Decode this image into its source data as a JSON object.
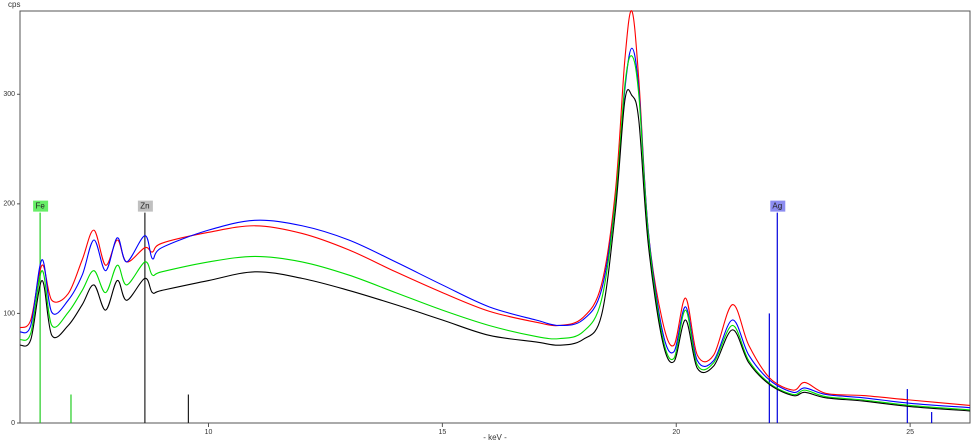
{
  "chart_data": {
    "type": "line",
    "y_label": "cps",
    "x_label": "- keV -",
    "xlim": [
      5.97,
      26.28
    ],
    "ylim": [
      0,
      376
    ],
    "xticks": [
      10,
      15,
      20,
      25
    ],
    "yticks": [
      0,
      100,
      200,
      300
    ],
    "x": [
      5.97,
      6.2,
      6.44,
      6.65,
      7.0,
      7.3,
      7.55,
      7.8,
      8.05,
      8.25,
      8.64,
      8.8,
      9.0,
      10,
      11,
      12,
      13,
      14,
      15,
      16,
      17,
      17.5,
      18,
      18.4,
      18.7,
      18.9,
      19.05,
      19.2,
      19.4,
      19.7,
      19.95,
      20.2,
      20.45,
      20.8,
      21.2,
      21.55,
      22.0,
      22.5,
      22.75,
      23.2,
      24,
      25,
      26.28
    ],
    "series": [
      {
        "color": "#ff0000",
        "values": [
          87,
          94,
          144,
          112,
          118,
          149,
          176,
          144,
          167,
          147,
          160,
          156,
          164,
          174,
          180,
          173,
          158,
          138,
          119,
          102,
          92,
          89,
          96,
          126,
          212,
          331,
          376,
          313,
          176,
          94,
          71,
          114,
          62,
          62,
          108,
          71,
          41,
          30,
          37,
          27,
          25,
          21,
          16
        ]
      },
      {
        "color": "#0000ff",
        "values": [
          83,
          89,
          149,
          101,
          112,
          135,
          167,
          139,
          169,
          147,
          171,
          150,
          160,
          176,
          185,
          180,
          167,
          147,
          126,
          106,
          94,
          89,
          94,
          121,
          203,
          304,
          342,
          304,
          176,
          85,
          65,
          106,
          57,
          57,
          94,
          62,
          39,
          28,
          32,
          26,
          23,
          18,
          14
        ]
      },
      {
        "color": "#00dd00",
        "values": [
          76,
          82,
          139,
          89,
          101,
          121,
          139,
          119,
          144,
          126,
          147,
          135,
          138,
          147,
          152,
          147,
          135,
          119,
          103,
          89,
          79,
          77,
          83,
          112,
          203,
          308,
          335,
          299,
          173,
          80,
          59,
          103,
          53,
          55,
          89,
          57,
          36,
          26,
          30,
          24,
          21,
          16,
          12
        ]
      },
      {
        "color": "#000000",
        "values": [
          71,
          76,
          130,
          80,
          89,
          108,
          126,
          103,
          130,
          112,
          132,
          119,
          121,
          130,
          138,
          132,
          121,
          108,
          94,
          80,
          74,
          71,
          76,
          98,
          194,
          294,
          299,
          276,
          164,
          76,
          56,
          94,
          50,
          52,
          85,
          55,
          35,
          25,
          28,
          23,
          20,
          15,
          11
        ]
      }
    ],
    "markers": [
      {
        "label": "Fe",
        "color": "#22cc22",
        "box": "#66ee66",
        "lines": [
          {
            "x": 6.4,
            "h": 192
          },
          {
            "x": 7.06,
            "h": 26
          }
        ]
      },
      {
        "label": "Zn",
        "color": "#222222",
        "box": "#c0c0c0",
        "lines": [
          {
            "x": 8.64,
            "h": 192
          },
          {
            "x": 9.57,
            "h": 26
          }
        ]
      },
      {
        "label": "Ag",
        "color": "#0000dd",
        "box": "#8c8cf0",
        "lines": [
          {
            "x": 22.16,
            "h": 192
          },
          {
            "x": 21.99,
            "h": 100
          },
          {
            "x": 24.94,
            "h": 31
          },
          {
            "x": 25.46,
            "h": 10
          }
        ]
      }
    ]
  }
}
